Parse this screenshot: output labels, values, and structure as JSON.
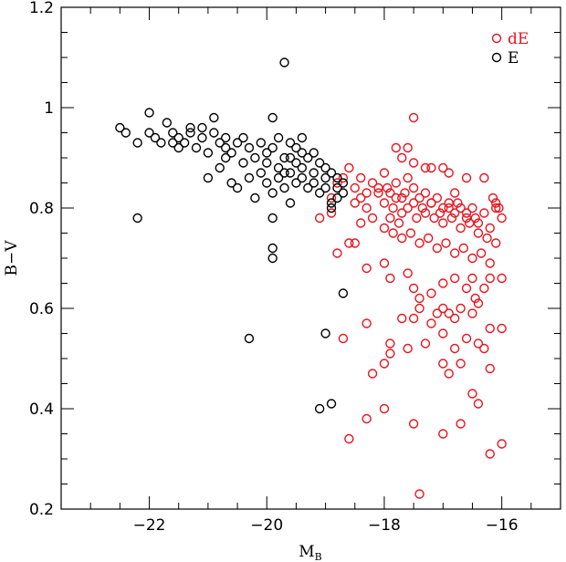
{
  "chart_data": {
    "type": "scatter",
    "xlabel": "M",
    "xlabel_sub": "B",
    "ylabel": "B−V",
    "xlim": [
      -23.5,
      -15
    ],
    "ylim": [
      0.2,
      1.2
    ],
    "x_ticks": [
      -22,
      -20,
      -18,
      -16
    ],
    "x_tick_labels": [
      "−22",
      "−20",
      "−18",
      "−16"
    ],
    "y_ticks": [
      0.2,
      0.4,
      0.6,
      0.8,
      1.0,
      1.2
    ],
    "y_tick_labels": [
      "0.2",
      "0.4",
      "0.6",
      "0.8",
      "1",
      "1.2"
    ],
    "grid": false,
    "legend_position": "top-right",
    "series": [
      {
        "name": "dE",
        "color": "#e8141e",
        "marker": "open-circle",
        "points": [
          [
            -19.1,
            0.78
          ],
          [
            -18.9,
            0.82
          ],
          [
            -18.8,
            0.85
          ],
          [
            -18.7,
            0.86
          ],
          [
            -18.6,
            0.88
          ],
          [
            -18.5,
            0.84
          ],
          [
            -18.4,
            0.86
          ],
          [
            -18.3,
            0.83
          ],
          [
            -18.2,
            0.85
          ],
          [
            -18.1,
            0.84
          ],
          [
            -18.0,
            0.87
          ],
          [
            -17.9,
            0.83
          ],
          [
            -17.8,
            0.85
          ],
          [
            -17.7,
            0.82
          ],
          [
            -17.6,
            0.86
          ],
          [
            -17.5,
            0.84
          ],
          [
            -17.4,
            0.82
          ],
          [
            -17.3,
            0.83
          ],
          [
            -17.2,
            0.81
          ],
          [
            -17.1,
            0.82
          ],
          [
            -17.0,
            0.8
          ],
          [
            -16.9,
            0.81
          ],
          [
            -16.8,
            0.79
          ],
          [
            -16.7,
            0.8
          ],
          [
            -16.6,
            0.78
          ],
          [
            -16.5,
            0.8
          ],
          [
            -16.4,
            0.77
          ],
          [
            -16.3,
            0.79
          ],
          [
            -16.2,
            0.76
          ],
          [
            -16.1,
            0.8
          ],
          [
            -18.3,
            0.8
          ],
          [
            -18.2,
            0.78
          ],
          [
            -18.0,
            0.81
          ],
          [
            -17.85,
            0.8
          ],
          [
            -17.7,
            0.79
          ],
          [
            -17.6,
            0.8
          ],
          [
            -17.45,
            0.78
          ],
          [
            -17.3,
            0.79
          ],
          [
            -17.15,
            0.78
          ],
          [
            -17.0,
            0.77
          ],
          [
            -16.85,
            0.78
          ],
          [
            -16.7,
            0.76
          ],
          [
            -16.55,
            0.77
          ],
          [
            -16.4,
            0.75
          ],
          [
            -18.5,
            0.81
          ],
          [
            -18.4,
            0.82
          ],
          [
            -18.1,
            0.83
          ],
          [
            -17.95,
            0.84
          ],
          [
            -17.8,
            0.82
          ],
          [
            -17.65,
            0.83
          ],
          [
            -17.5,
            0.81
          ],
          [
            -17.35,
            0.8
          ],
          [
            -17.2,
            0.81
          ],
          [
            -17.05,
            0.79
          ],
          [
            -16.9,
            0.8
          ],
          [
            -16.75,
            0.81
          ],
          [
            -16.6,
            0.79
          ],
          [
            -16.45,
            0.78
          ],
          [
            -18.0,
            0.76
          ],
          [
            -17.85,
            0.75
          ],
          [
            -17.7,
            0.74
          ],
          [
            -17.55,
            0.75
          ],
          [
            -17.4,
            0.73
          ],
          [
            -17.25,
            0.74
          ],
          [
            -17.1,
            0.72
          ],
          [
            -16.95,
            0.73
          ],
          [
            -16.8,
            0.71
          ],
          [
            -16.65,
            0.72
          ],
          [
            -16.5,
            0.7
          ],
          [
            -16.35,
            0.71
          ],
          [
            -16.2,
            0.69
          ],
          [
            -17.5,
            0.98
          ],
          [
            -17.6,
            0.92
          ],
          [
            -17.8,
            0.92
          ],
          [
            -17.7,
            0.9
          ],
          [
            -17.5,
            0.89
          ],
          [
            -17.2,
            0.88
          ],
          [
            -17.0,
            0.88
          ],
          [
            -16.9,
            0.87
          ],
          [
            -16.6,
            0.86
          ],
          [
            -16.3,
            0.86
          ],
          [
            -16.1,
            0.81
          ],
          [
            -16.05,
            0.8
          ],
          [
            -16.0,
            0.78
          ],
          [
            -18.6,
            0.73
          ],
          [
            -18.5,
            0.73
          ],
          [
            -18.3,
            0.68
          ],
          [
            -18.0,
            0.69
          ],
          [
            -17.9,
            0.66
          ],
          [
            -17.6,
            0.67
          ],
          [
            -17.5,
            0.64
          ],
          [
            -17.4,
            0.62
          ],
          [
            -17.2,
            0.63
          ],
          [
            -17.0,
            0.65
          ],
          [
            -16.8,
            0.66
          ],
          [
            -16.6,
            0.64
          ],
          [
            -16.5,
            0.66
          ],
          [
            -16.3,
            0.64
          ],
          [
            -16.2,
            0.66
          ],
          [
            -16.0,
            0.66
          ],
          [
            -17.7,
            0.58
          ],
          [
            -17.5,
            0.58
          ],
          [
            -17.4,
            0.6
          ],
          [
            -17.0,
            0.6
          ],
          [
            -16.8,
            0.58
          ],
          [
            -16.5,
            0.59
          ],
          [
            -16.4,
            0.61
          ],
          [
            -16.2,
            0.56
          ],
          [
            -16.0,
            0.56
          ],
          [
            -18.3,
            0.57
          ],
          [
            -18.7,
            0.54
          ],
          [
            -17.9,
            0.53
          ],
          [
            -17.9,
            0.51
          ],
          [
            -18.0,
            0.49
          ],
          [
            -18.2,
            0.47
          ],
          [
            -17.6,
            0.52
          ],
          [
            -17.3,
            0.53
          ],
          [
            -17.0,
            0.55
          ],
          [
            -16.8,
            0.52
          ],
          [
            -16.6,
            0.54
          ],
          [
            -16.4,
            0.53
          ],
          [
            -16.3,
            0.52
          ],
          [
            -16.2,
            0.48
          ],
          [
            -17.0,
            0.49
          ],
          [
            -16.9,
            0.47
          ],
          [
            -16.7,
            0.49
          ],
          [
            -18.3,
            0.38
          ],
          [
            -18.0,
            0.4
          ],
          [
            -17.5,
            0.37
          ],
          [
            -17.0,
            0.35
          ],
          [
            -16.7,
            0.37
          ],
          [
            -16.5,
            0.43
          ],
          [
            -16.4,
            0.41
          ],
          [
            -16.2,
            0.31
          ],
          [
            -16.0,
            0.33
          ],
          [
            -18.6,
            0.34
          ],
          [
            -17.4,
            0.23
          ],
          [
            -18.8,
            0.71
          ],
          [
            -18.9,
            0.79
          ],
          [
            -18.4,
            0.77
          ],
          [
            -16.9,
            0.59
          ],
          [
            -16.1,
            0.73
          ],
          [
            -16.25,
            0.74
          ],
          [
            -16.15,
            0.82
          ],
          [
            -17.3,
            0.88
          ],
          [
            -16.8,
            0.83
          ],
          [
            -17.9,
            0.78
          ],
          [
            -17.75,
            0.77
          ],
          [
            -16.7,
            0.6
          ],
          [
            -16.45,
            0.62
          ],
          [
            -17.2,
            0.57
          ],
          [
            -17.1,
            0.59
          ]
        ]
      },
      {
        "name": "E",
        "color": "#000000",
        "marker": "open-circle",
        "points": [
          [
            -22.5,
            0.96
          ],
          [
            -22.4,
            0.95
          ],
          [
            -22.2,
            0.93
          ],
          [
            -22.0,
            0.99
          ],
          [
            -21.9,
            0.94
          ],
          [
            -21.8,
            0.93
          ],
          [
            -21.7,
            0.97
          ],
          [
            -21.6,
            0.95
          ],
          [
            -21.5,
            0.94
          ],
          [
            -21.4,
            0.93
          ],
          [
            -21.3,
            0.95
          ],
          [
            -21.2,
            0.92
          ],
          [
            -21.1,
            0.96
          ],
          [
            -21.0,
            0.91
          ],
          [
            -20.9,
            0.98
          ],
          [
            -20.8,
            0.93
          ],
          [
            -20.7,
            0.92
          ],
          [
            -20.6,
            0.91
          ],
          [
            -20.5,
            0.93
          ],
          [
            -20.4,
            0.89
          ],
          [
            -20.3,
            0.92
          ],
          [
            -20.2,
            0.9
          ],
          [
            -20.1,
            0.93
          ],
          [
            -20.0,
            0.91
          ],
          [
            -19.9,
            0.92
          ],
          [
            -19.8,
            0.94
          ],
          [
            -19.7,
            0.9
          ],
          [
            -19.6,
            0.93
          ],
          [
            -19.5,
            0.92
          ],
          [
            -19.4,
            0.94
          ],
          [
            -19.3,
            0.9
          ],
          [
            -19.2,
            0.91
          ],
          [
            -19.1,
            0.89
          ],
          [
            -19.0,
            0.88
          ],
          [
            -18.9,
            0.87
          ],
          [
            -18.8,
            0.86
          ],
          [
            -18.7,
            0.85
          ],
          [
            -22.2,
            0.78
          ],
          [
            -21.0,
            0.86
          ],
          [
            -20.8,
            0.88
          ],
          [
            -20.6,
            0.85
          ],
          [
            -20.5,
            0.84
          ],
          [
            -20.3,
            0.86
          ],
          [
            -20.2,
            0.82
          ],
          [
            -20.1,
            0.87
          ],
          [
            -20.0,
            0.85
          ],
          [
            -19.9,
            0.83
          ],
          [
            -19.8,
            0.86
          ],
          [
            -19.7,
            0.84
          ],
          [
            -19.6,
            0.87
          ],
          [
            -19.5,
            0.85
          ],
          [
            -19.4,
            0.86
          ],
          [
            -19.3,
            0.84
          ],
          [
            -19.2,
            0.85
          ],
          [
            -19.1,
            0.83
          ],
          [
            -19.0,
            0.84
          ],
          [
            -18.9,
            0.81
          ],
          [
            -18.8,
            0.82
          ],
          [
            -18.9,
            0.8
          ],
          [
            -19.7,
            1.09
          ],
          [
            -19.9,
            0.98
          ],
          [
            -19.6,
            0.81
          ],
          [
            -19.9,
            0.78
          ],
          [
            -19.9,
            0.72
          ],
          [
            -19.9,
            0.7
          ],
          [
            -20.3,
            0.54
          ],
          [
            -19.0,
            0.55
          ],
          [
            -18.7,
            0.63
          ],
          [
            -19.1,
            0.4
          ],
          [
            -18.9,
            0.41
          ],
          [
            -20.7,
            0.94
          ],
          [
            -21.1,
            0.94
          ],
          [
            -21.6,
            0.93
          ],
          [
            -22.0,
            0.95
          ],
          [
            -19.8,
            0.88
          ],
          [
            -19.7,
            0.87
          ],
          [
            -19.5,
            0.89
          ],
          [
            -19.4,
            0.88
          ],
          [
            -19.2,
            0.87
          ],
          [
            -19.0,
            0.86
          ],
          [
            -18.8,
            0.84
          ],
          [
            -18.7,
            0.83
          ],
          [
            -20.4,
            0.94
          ],
          [
            -20.0,
            0.89
          ],
          [
            -19.6,
            0.9
          ],
          [
            -19.4,
            0.91
          ],
          [
            -20.7,
            0.9
          ],
          [
            -21.3,
            0.96
          ],
          [
            -21.5,
            0.92
          ],
          [
            -20.9,
            0.95
          ]
        ]
      }
    ]
  }
}
